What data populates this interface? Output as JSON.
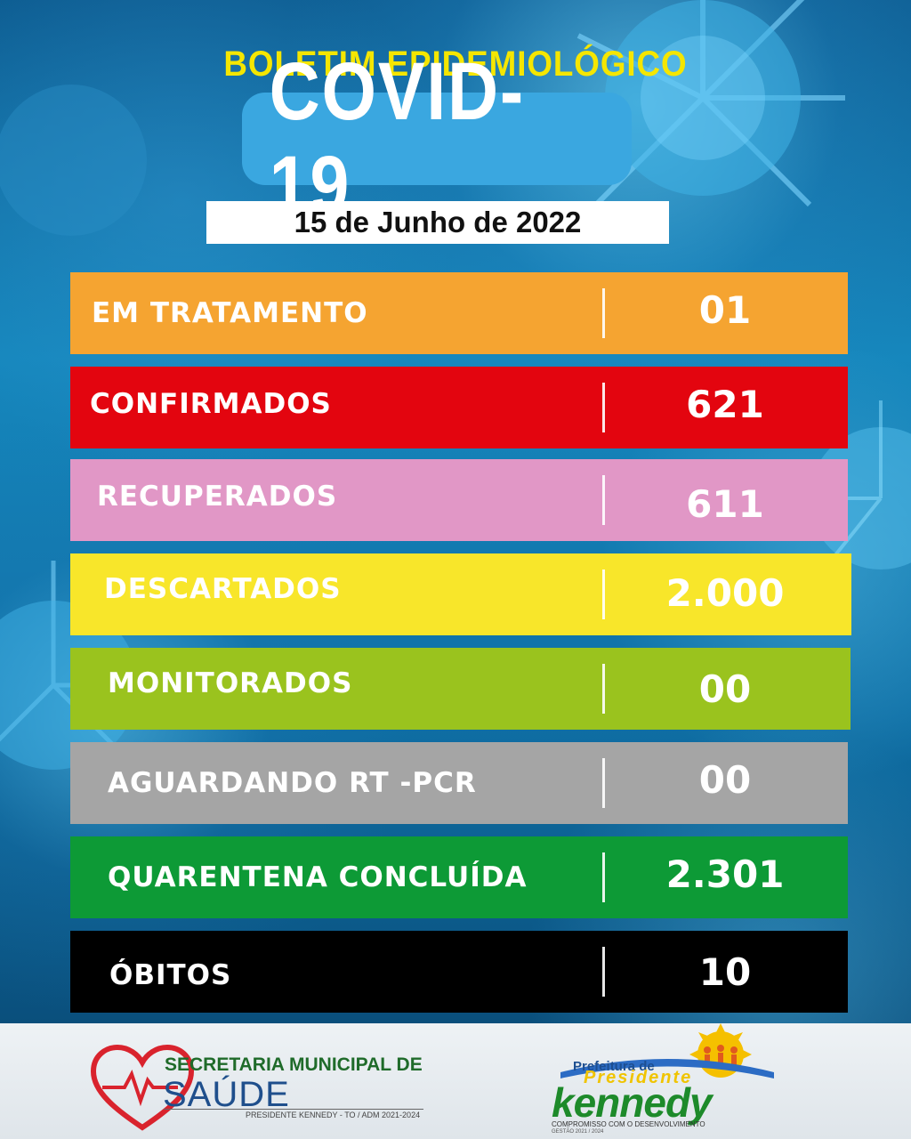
{
  "header": {
    "pre_title": "BOLETIM EPIDEMIOLÓGICO",
    "title": "COVID-19",
    "date": "15 de Junho de 2022"
  },
  "rows": [
    {
      "label": "EM TRATAMENTO",
      "value": "01",
      "color": "#f5a431"
    },
    {
      "label": "CONFIRMADOS",
      "value": "621",
      "color": "#e3050f"
    },
    {
      "label": "RECUPERADOS",
      "value": "611",
      "color": "#e197c6"
    },
    {
      "label": "DESCARTADOS",
      "value": "2.000",
      "color": "#f8e62a"
    },
    {
      "label": "MONITORADOS",
      "value": "00",
      "color": "#9ac31e"
    },
    {
      "label": "AGUARDANDO RT -PCR",
      "value": "00",
      "color": "#a5a5a5"
    },
    {
      "label": "QUARENTENA CONCLUÍDA",
      "value": "2.301",
      "color": "#0d9a36"
    },
    {
      "label": "ÓBITOS",
      "value": "10",
      "color": "#000000"
    }
  ],
  "footer": {
    "secretaria": {
      "line1": "SECRETARIA MUNICIPAL DE",
      "line2": "SAÚDE",
      "line3": "PRESIDENTE KENNEDY - TO / ADM 2021-2024"
    },
    "prefeitura": {
      "prefix": "Prefeitura de",
      "name_top": "Presidente",
      "name_main": "kennedy",
      "slogan": "COMPROMISSO COM O DESENVOLVIMENTO",
      "gestao": "GESTÃO 2021 / 2024"
    }
  },
  "colors": {
    "title_yellow": "#f5e600",
    "covid_box": "#3aa7e0",
    "background_blue": "#1687bd"
  },
  "icons": [
    "heart-pulse-icon",
    "sun-family-icon",
    "virus-decoration"
  ]
}
